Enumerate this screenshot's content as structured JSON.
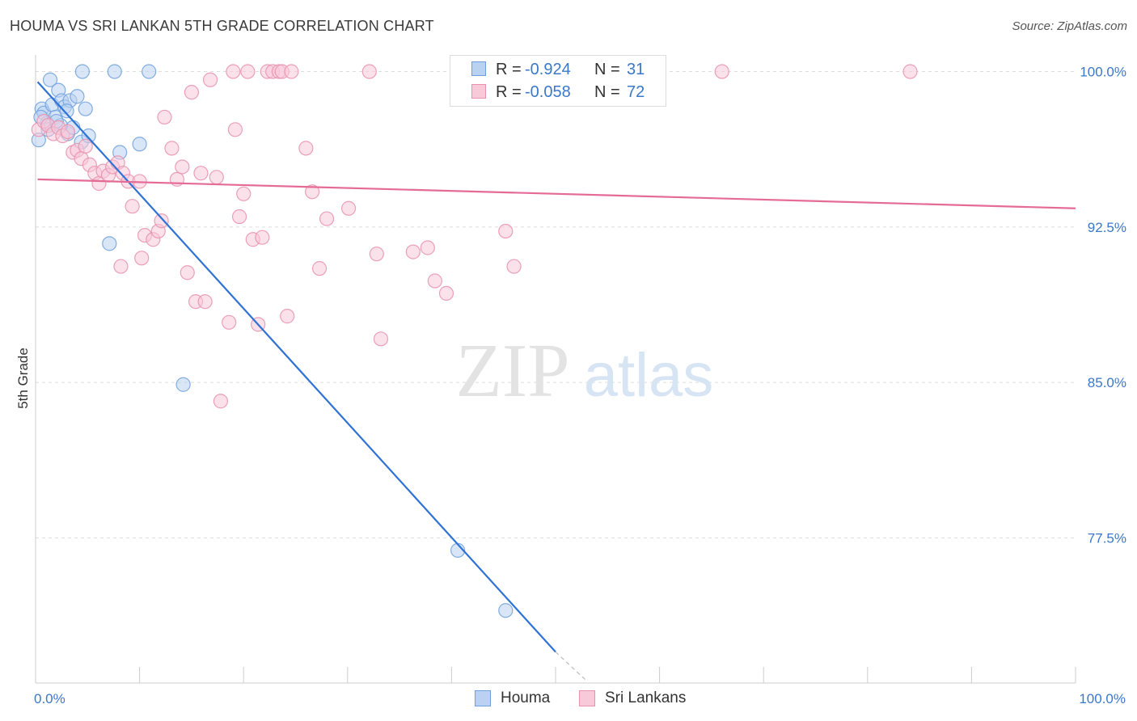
{
  "header": {
    "title": "HOUMA VS SRI LANKAN 5TH GRADE CORRELATION CHART",
    "source": "Source: ZipAtlas.com"
  },
  "watermark": {
    "zip": "ZIP",
    "atlas": "atlas"
  },
  "legend": {
    "series": [
      {
        "r_label": "R =",
        "r_value": "-0.924",
        "n_label": "N =",
        "n_value": "31",
        "color": "#6fa0dc",
        "fill": "#b9d2f2"
      },
      {
        "r_label": "R =",
        "r_value": "-0.058",
        "n_label": "N =",
        "n_value": "72",
        "color": "#e890ad",
        "fill": "#f8c9d8"
      }
    ]
  },
  "bottom_legend": [
    {
      "label": "Houma",
      "color": "#6fa0dc",
      "fill": "#b9d2f2"
    },
    {
      "label": "Sri Lankans",
      "color": "#e890ad",
      "fill": "#f8c9d8"
    }
  ],
  "chart_data": {
    "type": "scatter",
    "ylabel": "5th Grade",
    "xlim": [
      0,
      100
    ],
    "ylim": [
      70.5,
      100.8
    ],
    "x_ticks": [
      {
        "value": 0,
        "label": "0.0%"
      },
      {
        "value": 100,
        "label": "100.0%"
      }
    ],
    "y_ticks": [
      {
        "value": 100,
        "label": "100.0%"
      },
      {
        "value": 92.5,
        "label": "92.5%"
      },
      {
        "value": 85,
        "label": "85.0%"
      },
      {
        "value": 77.5,
        "label": "77.5%"
      }
    ],
    "grid": true,
    "series": [
      {
        "name": "Houma",
        "color": "#6fa0dc",
        "fill": "#b9d2f2",
        "points": [
          [
            0.3,
            96.7
          ],
          [
            0.6,
            98.2
          ],
          [
            0.8,
            98.0
          ],
          [
            1.1,
            97.5
          ],
          [
            1.4,
            99.6
          ],
          [
            1.6,
            98.4
          ],
          [
            1.9,
            97.8
          ],
          [
            2.2,
            99.1
          ],
          [
            2.5,
            98.6
          ],
          [
            2.8,
            98.3
          ],
          [
            3.1,
            97.0
          ],
          [
            3.3,
            98.6
          ],
          [
            3.6,
            97.3
          ],
          [
            4.0,
            98.8
          ],
          [
            4.4,
            96.6
          ],
          [
            4.8,
            98.2
          ],
          [
            5.1,
            96.9
          ],
          [
            0.5,
            97.8
          ],
          [
            1.2,
            97.2
          ],
          [
            2.4,
            97.4
          ],
          [
            3.0,
            98.1
          ],
          [
            4.5,
            100.0
          ],
          [
            7.6,
            100.0
          ],
          [
            10.9,
            100.0
          ],
          [
            8.1,
            96.1
          ],
          [
            10.0,
            96.5
          ],
          [
            7.1,
            91.7
          ],
          [
            14.2,
            84.9
          ],
          [
            40.6,
            76.9
          ],
          [
            45.2,
            74.0
          ],
          [
            2.0,
            97.6
          ]
        ],
        "trend": {
          "x0": 0.2,
          "y0": 99.5,
          "x1": 50.0,
          "y1": 72.0,
          "dash_x1": 53.0,
          "dash_y1": 70.6
        }
      },
      {
        "name": "Sri Lankans",
        "color": "#e890ad",
        "fill": "#f8c9d8",
        "points": [
          [
            0.3,
            97.2
          ],
          [
            0.8,
            97.6
          ],
          [
            1.2,
            97.4
          ],
          [
            1.7,
            97.0
          ],
          [
            2.2,
            97.3
          ],
          [
            2.6,
            96.9
          ],
          [
            3.1,
            97.1
          ],
          [
            3.6,
            96.1
          ],
          [
            4.0,
            96.2
          ],
          [
            4.4,
            95.8
          ],
          [
            4.8,
            96.4
          ],
          [
            5.2,
            95.5
          ],
          [
            5.7,
            95.1
          ],
          [
            6.1,
            94.6
          ],
          [
            6.5,
            95.2
          ],
          [
            7.0,
            95.0
          ],
          [
            7.4,
            95.4
          ],
          [
            7.9,
            95.6
          ],
          [
            8.4,
            95.1
          ],
          [
            8.9,
            94.7
          ],
          [
            9.3,
            93.5
          ],
          [
            10.0,
            94.7
          ],
          [
            10.5,
            92.1
          ],
          [
            11.3,
            91.9
          ],
          [
            11.8,
            92.3
          ],
          [
            12.1,
            92.8
          ],
          [
            12.4,
            97.8
          ],
          [
            13.1,
            96.3
          ],
          [
            13.6,
            94.8
          ],
          [
            14.1,
            95.4
          ],
          [
            14.6,
            90.3
          ],
          [
            15.0,
            99.0
          ],
          [
            15.4,
            88.9
          ],
          [
            15.9,
            95.1
          ],
          [
            16.3,
            88.9
          ],
          [
            16.8,
            99.6
          ],
          [
            17.4,
            94.9
          ],
          [
            17.8,
            84.1
          ],
          [
            18.6,
            87.9
          ],
          [
            19.0,
            100.0
          ],
          [
            19.2,
            97.2
          ],
          [
            19.6,
            93.0
          ],
          [
            20.0,
            94.1
          ],
          [
            20.4,
            100.0
          ],
          [
            20.9,
            91.9
          ],
          [
            21.4,
            87.8
          ],
          [
            21.8,
            92.0
          ],
          [
            22.3,
            100.0
          ],
          [
            22.8,
            100.0
          ],
          [
            23.4,
            100.0
          ],
          [
            23.7,
            100.0
          ],
          [
            24.2,
            88.2
          ],
          [
            24.6,
            100.0
          ],
          [
            26.0,
            96.3
          ],
          [
            26.6,
            94.2
          ],
          [
            27.3,
            90.5
          ],
          [
            28.0,
            92.9
          ],
          [
            30.1,
            93.4
          ],
          [
            32.1,
            100.0
          ],
          [
            32.8,
            91.2
          ],
          [
            33.2,
            87.1
          ],
          [
            36.3,
            91.3
          ],
          [
            37.7,
            91.5
          ],
          [
            38.4,
            89.9
          ],
          [
            39.5,
            89.3
          ],
          [
            45.2,
            92.3
          ],
          [
            46.0,
            90.6
          ],
          [
            46.8,
            100.0
          ],
          [
            84.1,
            100.0
          ],
          [
            66.0,
            100.0
          ],
          [
            8.2,
            90.6
          ],
          [
            10.2,
            91.0
          ]
        ],
        "trend": {
          "x0": 0.2,
          "y0": 94.8,
          "x1": 100.0,
          "y1": 93.4
        }
      }
    ]
  }
}
